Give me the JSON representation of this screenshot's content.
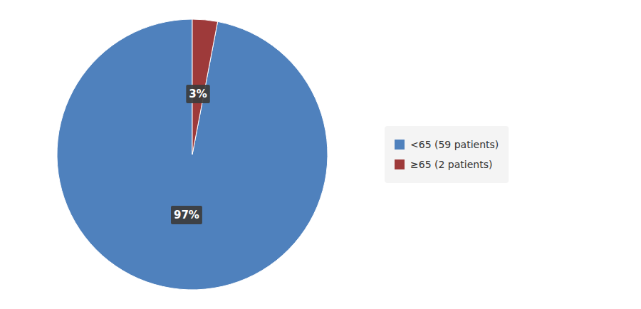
{
  "chart_data": {
    "type": "pie",
    "categories": [
      "<65 (59 patients)",
      "≥65 (2 patients)"
    ],
    "values": [
      97,
      3
    ],
    "value_labels": [
      "97%",
      "3%"
    ],
    "colors": [
      "#4F81BD",
      "#9E3A3A"
    ],
    "data_labels": true,
    "legend": "right"
  }
}
